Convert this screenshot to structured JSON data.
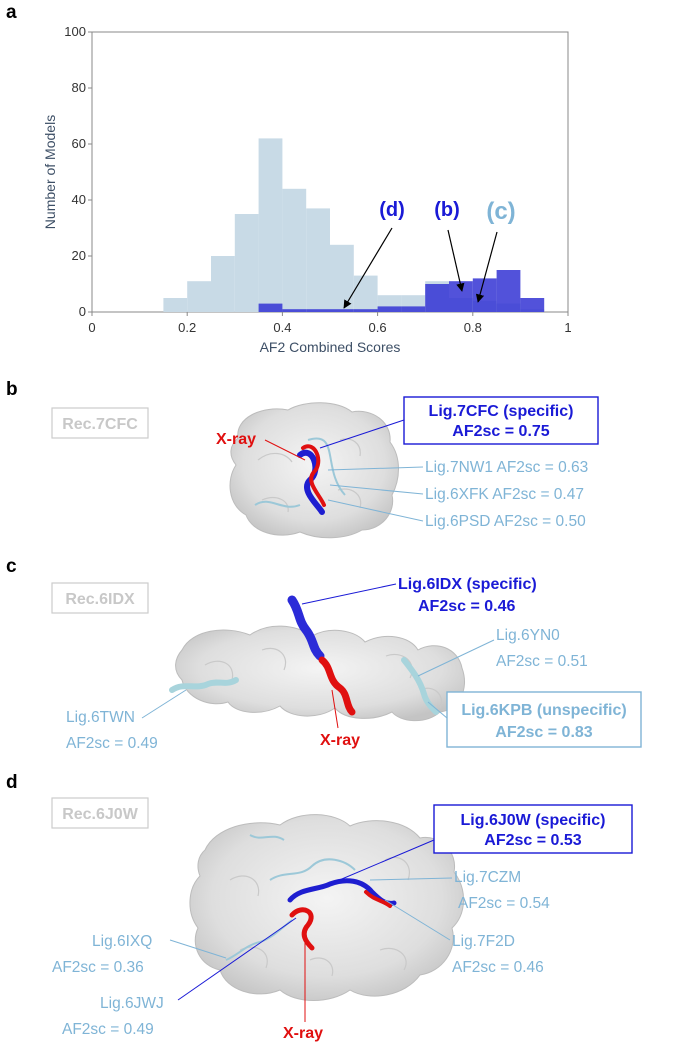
{
  "panel_labels": {
    "a": "a",
    "b": "b",
    "c": "c",
    "d": "d"
  },
  "chart_data": {
    "type": "bar",
    "xlabel": "AF2 Combined Scores",
    "ylabel": "Number of Models",
    "xlim": [
      0,
      1
    ],
    "ylim": [
      0,
      100
    ],
    "x_ticks": [
      "0",
      "0.2",
      "0.4",
      "0.6",
      "0.8",
      "1"
    ],
    "y_ticks": [
      "0",
      "20",
      "40",
      "60",
      "80",
      "100"
    ],
    "bin_width": 0.05,
    "series": [
      {
        "name": "unspecific",
        "color": "#c8dae6",
        "bins": [
          0.15,
          0.2,
          0.25,
          0.3,
          0.35,
          0.4,
          0.45,
          0.5,
          0.55,
          0.6,
          0.65,
          0.7,
          0.75,
          0.8,
          0.85,
          0.9
        ],
        "values": [
          5,
          11,
          20,
          35,
          62,
          44,
          37,
          24,
          13,
          6,
          6,
          11,
          5,
          4,
          3,
          1
        ]
      },
      {
        "name": "specific",
        "color": "#3434d4",
        "bins": [
          0.35,
          0.4,
          0.45,
          0.5,
          0.55,
          0.6,
          0.65,
          0.7,
          0.75,
          0.8,
          0.85,
          0.9
        ],
        "values": [
          3,
          1,
          1,
          1,
          1,
          2,
          2,
          10,
          11,
          12,
          15,
          5
        ]
      }
    ],
    "annotations": [
      {
        "label": "(d)",
        "color": "#1a1ad6",
        "target": [
          0.53,
          1
        ]
      },
      {
        "label": "(b)",
        "color": "#1a1ad6",
        "target": [
          0.78,
          11
        ]
      },
      {
        "label": "(c)",
        "color": "#7fb4d6",
        "target": [
          0.81,
          3
        ]
      }
    ]
  },
  "panel_b": {
    "receptor": "Rec.7CFC",
    "specific_line1": "Lig.7CFC (specific)",
    "specific_line2": "AF2sc = 0.75",
    "xray": "X-ray",
    "others": [
      "Lig.7NW1 AF2sc = 0.63",
      "Lig.6XFK AF2sc = 0.47",
      "Lig.6PSD AF2sc = 0.50"
    ]
  },
  "panel_c": {
    "receptor": "Rec.6IDX",
    "specific_line1": "Lig.6IDX (specific)",
    "specific_line2": "AF2sc = 0.46",
    "xray": "X-ray",
    "yn0_line1": "Lig.6YN0",
    "yn0_line2": "AF2sc = 0.51",
    "twn_line1": "Lig.6TWN",
    "twn_line2": "AF2sc = 0.49",
    "kpb_line1": "Lig.6KPB (unspecific)",
    "kpb_line2": "AF2sc = 0.83"
  },
  "panel_d": {
    "receptor": "Rec.6J0W",
    "specific_line1": "Lig.6J0W (specific)",
    "specific_line2": "AF2sc = 0.53",
    "xray": "X-ray",
    "czm_line1": "Lig.7CZM",
    "czm_line2": "AF2sc = 0.54",
    "f2d_line1": "Lig.7F2D",
    "f2d_line2": "AF2sc = 0.46",
    "ixq_line1": "Lig.6IXQ",
    "ixq_line2": "AF2sc = 0.36",
    "jwj_line1": "Lig.6JWJ",
    "jwj_line2": "AF2sc = 0.49"
  }
}
